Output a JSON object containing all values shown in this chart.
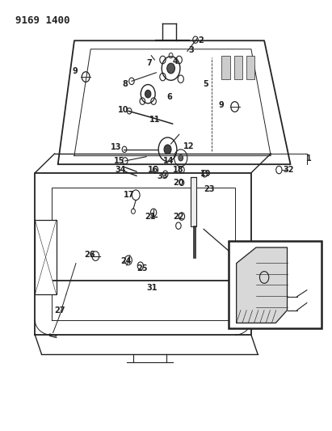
{
  "title": "9169 1400",
  "bg_color": "#ffffff",
  "line_color": "#222222",
  "label_fontsize": 7,
  "title_fontsize": 9
}
